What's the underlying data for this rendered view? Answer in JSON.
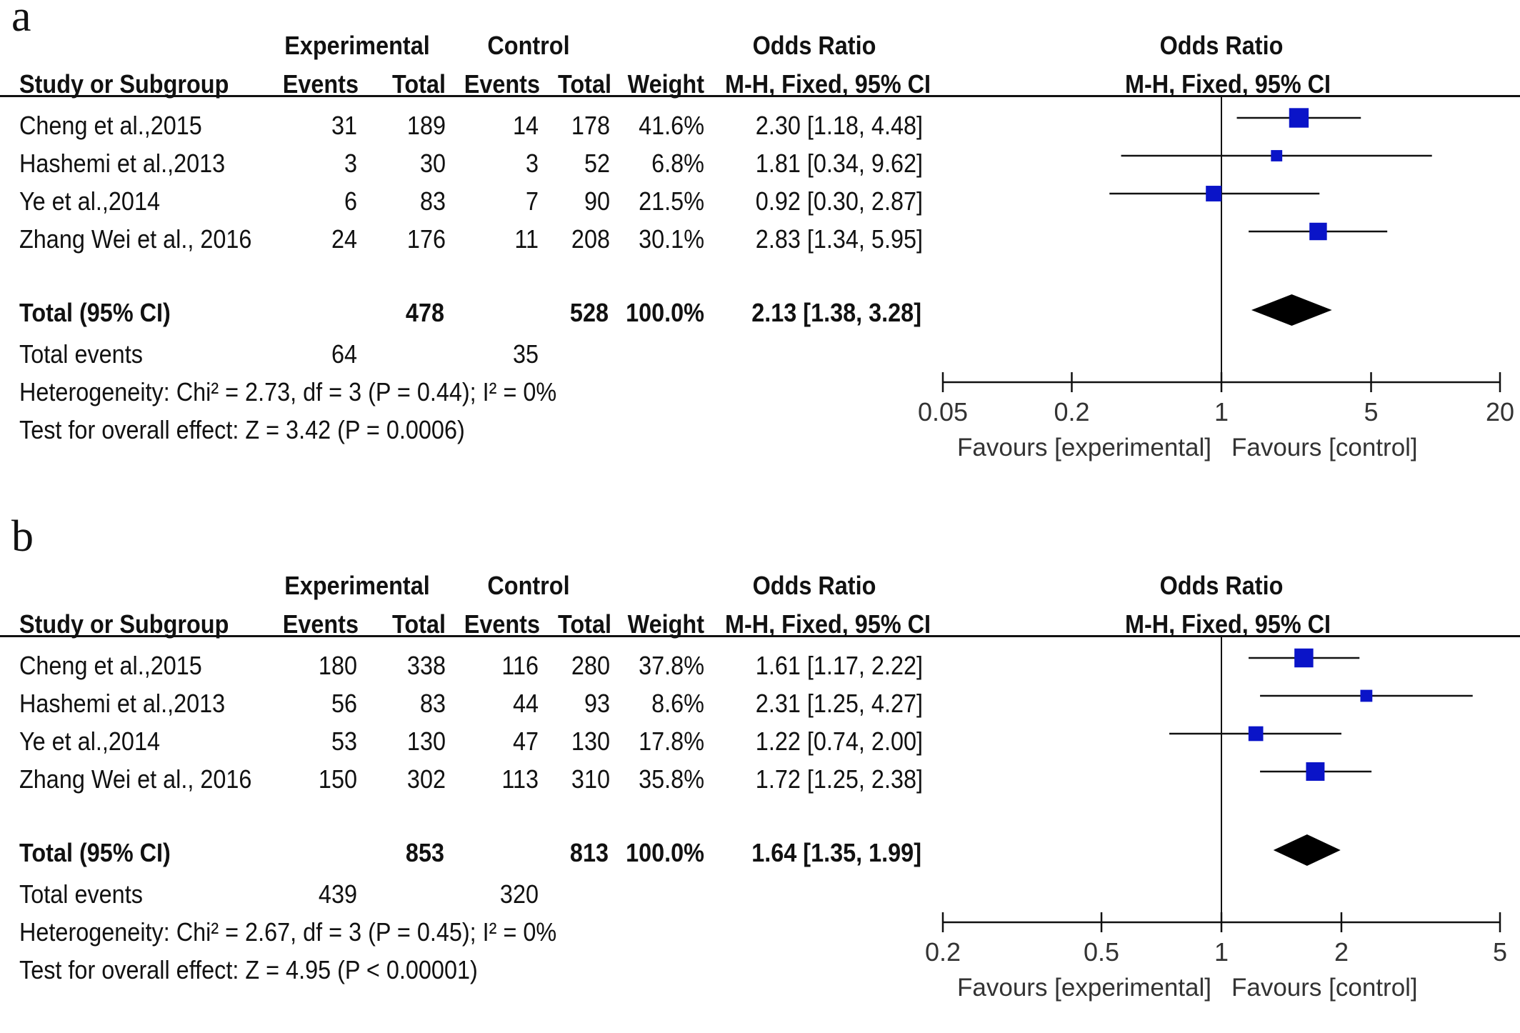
{
  "chart_data": [
    {
      "type": "table",
      "panel_label": "a",
      "headers": {
        "group_experimental": "Experimental",
        "group_control": "Control",
        "group_or": "Odds Ratio",
        "group_or_plot": "Odds Ratio",
        "study": "Study or Subgroup",
        "events_exp": "Events",
        "total_exp": "Total",
        "events_ctl": "Events",
        "total_ctl": "Total",
        "weight": "Weight",
        "method": "M-H, Fixed, 95% CI",
        "method_plot": "M-H, Fixed, 95% CI"
      },
      "rows": [
        {
          "study": "Cheng et al.,2015",
          "events_exp": "31",
          "total_exp": "189",
          "events_ctl": "14",
          "total_ctl": "178",
          "weight": "41.6%",
          "ci_text": "2.30 [1.18, 4.48]",
          "or": 2.3,
          "lo": 1.18,
          "hi": 4.48,
          "w": 41.6
        },
        {
          "study": "Hashemi et al.,2013",
          "events_exp": "3",
          "total_exp": "30",
          "events_ctl": "3",
          "total_ctl": "52",
          "weight": "6.8%",
          "ci_text": "1.81 [0.34, 9.62]",
          "or": 1.81,
          "lo": 0.34,
          "hi": 9.62,
          "w": 6.8
        },
        {
          "study": "Ye et al.,2014",
          "events_exp": "6",
          "total_exp": "83",
          "events_ctl": "7",
          "total_ctl": "90",
          "weight": "21.5%",
          "ci_text": "0.92 [0.30, 2.87]",
          "or": 0.92,
          "lo": 0.3,
          "hi": 2.87,
          "w": 21.5
        },
        {
          "study": "Zhang Wei et al., 2016",
          "events_exp": "24",
          "total_exp": "176",
          "events_ctl": "11",
          "total_ctl": "208",
          "weight": "30.1%",
          "ci_text": "2.83 [1.34, 5.95]",
          "or": 2.83,
          "lo": 1.34,
          "hi": 5.95,
          "w": 30.1
        }
      ],
      "total": {
        "label": "Total (95% CI)",
        "total_exp": "478",
        "total_ctl": "528",
        "weight": "100.0%",
        "ci_text": "2.13 [1.38, 3.28]",
        "or": 2.13,
        "lo": 1.38,
        "hi": 3.28
      },
      "total_events": {
        "label": "Total events",
        "exp": "64",
        "ctl": "35"
      },
      "heterogeneity": "Heterogeneity: Chi² = 2.73, df = 3 (P = 0.44); I² = 0%",
      "overall_effect": "Test for overall effect: Z = 3.42 (P = 0.0006)",
      "axis": {
        "scale": "log",
        "xlim": [
          0.05,
          20
        ],
        "ticks": [
          0.05,
          0.2,
          1,
          5,
          20
        ],
        "tick_labels": [
          "0.05",
          "0.2",
          "1",
          "5",
          "20"
        ]
      },
      "favours_left": "Favours [experimental]",
      "favours_right": "Favours [control]"
    },
    {
      "type": "table",
      "panel_label": "b",
      "headers": {
        "group_experimental": "Experimental",
        "group_control": "Control",
        "group_or": "Odds Ratio",
        "group_or_plot": "Odds Ratio",
        "study": "Study or Subgroup",
        "events_exp": "Events",
        "total_exp": "Total",
        "events_ctl": "Events",
        "total_ctl": "Total",
        "weight": "Weight",
        "method": "M-H, Fixed, 95% CI",
        "method_plot": "M-H, Fixed, 95% CI"
      },
      "rows": [
        {
          "study": "Cheng et al.,2015",
          "events_exp": "180",
          "total_exp": "338",
          "events_ctl": "116",
          "total_ctl": "280",
          "weight": "37.8%",
          "ci_text": "1.61 [1.17, 2.22]",
          "or": 1.61,
          "lo": 1.17,
          "hi": 2.22,
          "w": 37.8
        },
        {
          "study": "Hashemi et al.,2013",
          "events_exp": "56",
          "total_exp": "83",
          "events_ctl": "44",
          "total_ctl": "93",
          "weight": "8.6%",
          "ci_text": "2.31 [1.25, 4.27]",
          "or": 2.31,
          "lo": 1.25,
          "hi": 4.27,
          "w": 8.6
        },
        {
          "study": "Ye et al.,2014",
          "events_exp": "53",
          "total_exp": "130",
          "events_ctl": "47",
          "total_ctl": "130",
          "weight": "17.8%",
          "ci_text": "1.22 [0.74, 2.00]",
          "or": 1.22,
          "lo": 0.74,
          "hi": 2.0,
          "w": 17.8
        },
        {
          "study": "Zhang Wei et al., 2016",
          "events_exp": "150",
          "total_exp": "302",
          "events_ctl": "113",
          "total_ctl": "310",
          "weight": "35.8%",
          "ci_text": "1.72 [1.25, 2.38]",
          "or": 1.72,
          "lo": 1.25,
          "hi": 2.38,
          "w": 35.8
        }
      ],
      "total": {
        "label": "Total (95% CI)",
        "total_exp": "853",
        "total_ctl": "813",
        "weight": "100.0%",
        "ci_text": "1.64 [1.35, 1.99]",
        "or": 1.64,
        "lo": 1.35,
        "hi": 1.99
      },
      "total_events": {
        "label": "Total events",
        "exp": "439",
        "ctl": "320"
      },
      "heterogeneity": "Heterogeneity: Chi² = 2.67, df = 3 (P = 0.45); I² = 0%",
      "overall_effect": "Test for overall effect: Z = 4.95 (P < 0.00001)",
      "axis": {
        "scale": "log",
        "xlim": [
          0.2,
          5
        ],
        "ticks": [
          0.2,
          0.5,
          1,
          2,
          5
        ],
        "tick_labels": [
          "0.2",
          "0.5",
          "1",
          "2",
          "5"
        ]
      },
      "favours_left": "Favours [experimental]",
      "favours_right": "Favours [control]"
    }
  ],
  "colors": {
    "marker": "#0a14c8",
    "diamond": "#000000",
    "line": "#111111"
  }
}
